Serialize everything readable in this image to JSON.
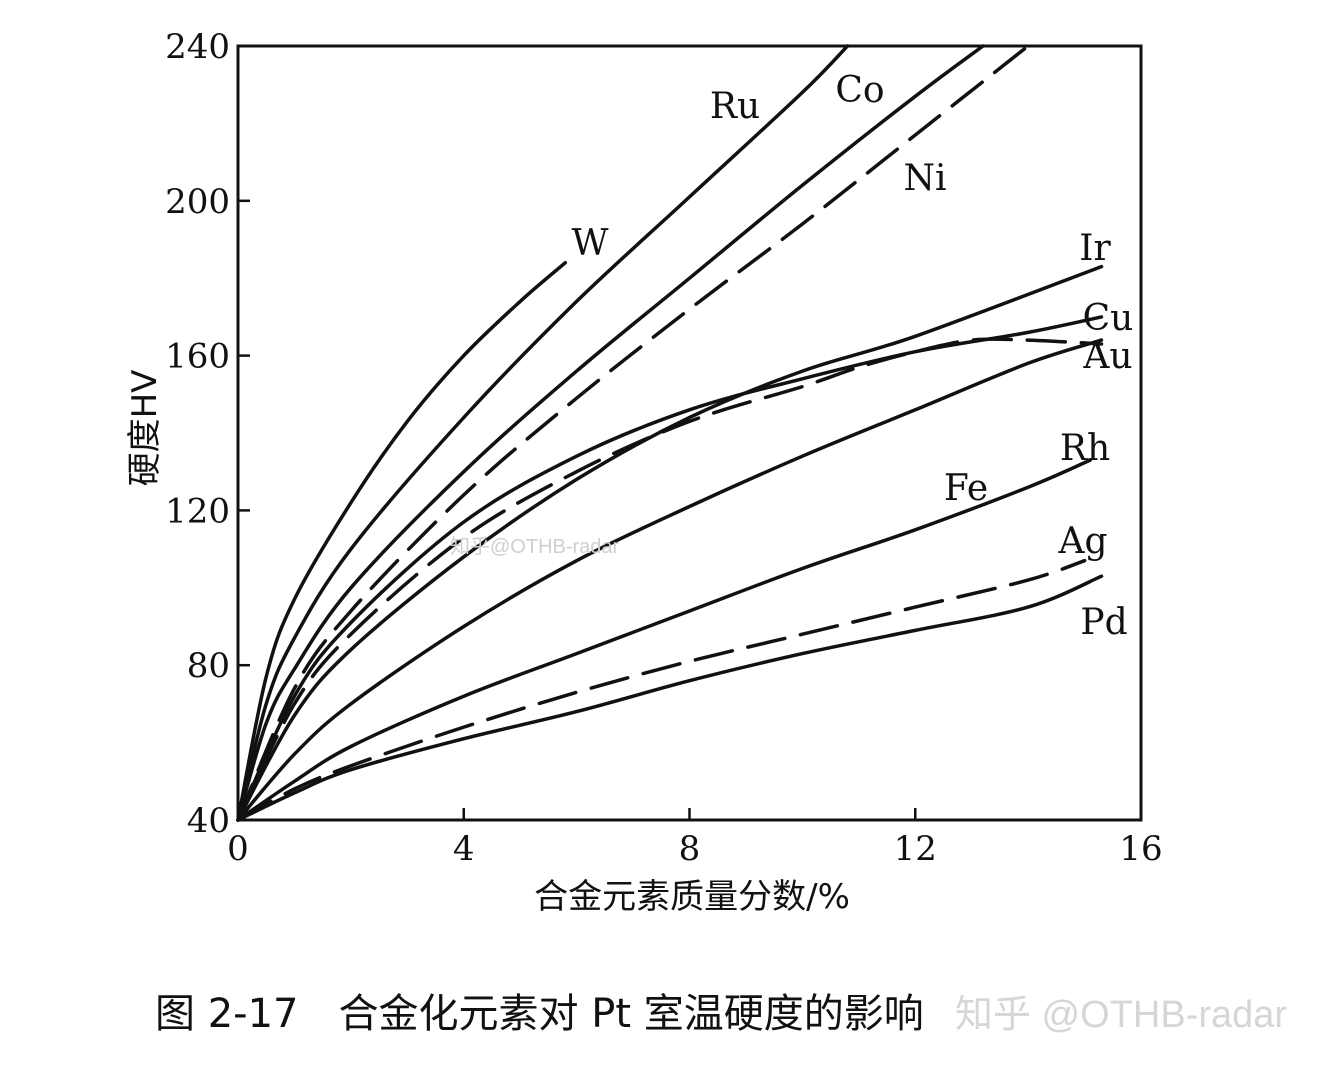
{
  "chart_data": {
    "type": "line",
    "xlabel": "合金元素质量分数/%",
    "ylabel": "硬度HV",
    "xlim": [
      0,
      16
    ],
    "ylim": [
      40,
      240
    ],
    "xticks": [
      0,
      4,
      8,
      12,
      16
    ],
    "yticks": [
      40,
      80,
      120,
      160,
      200,
      240
    ],
    "grid": false,
    "series": [
      {
        "name": "W",
        "style": "solid",
        "x": [
          0,
          0.5,
          1,
          2,
          3,
          4,
          5,
          5.8
        ],
        "y": [
          40,
          77,
          97,
          122,
          143,
          160,
          174,
          184
        ]
      },
      {
        "name": "Ru",
        "style": "solid",
        "x": [
          0,
          0.5,
          1,
          2,
          4,
          6,
          8,
          10,
          10.8
        ],
        "y": [
          40,
          70,
          87,
          110,
          144,
          174,
          201,
          228,
          240
        ]
      },
      {
        "name": "Co",
        "style": "solid",
        "x": [
          0,
          0.5,
          1,
          2,
          4,
          6,
          8,
          10,
          12,
          13.2
        ],
        "y": [
          40,
          65,
          79,
          100,
          130,
          156,
          180,
          204,
          227,
          240
        ]
      },
      {
        "name": "Ni",
        "style": "dashed",
        "x": [
          0,
          1,
          2,
          4,
          6,
          8,
          10,
          12,
          14
        ],
        "y": [
          40,
          74,
          94,
          124,
          149,
          172,
          194,
          217,
          240
        ]
      },
      {
        "name": "Ir",
        "style": "solid",
        "x": [
          0,
          1,
          2,
          4,
          6,
          8,
          10,
          12,
          15.3
        ],
        "y": [
          40,
          67,
          84,
          108,
          128,
          144,
          156,
          165,
          183
        ]
      },
      {
        "name": "Cu",
        "style": "solid",
        "x": [
          0,
          1,
          2,
          4,
          6,
          8,
          10,
          12,
          14,
          15.3
        ],
        "y": [
          40,
          72,
          91,
          117,
          134,
          146,
          154,
          161,
          166,
          170
        ]
      },
      {
        "name": "Au",
        "style": "dashed",
        "x": [
          0,
          1,
          2,
          4,
          6,
          8,
          10,
          11,
          12,
          13,
          14,
          15.3
        ],
        "y": [
          40,
          70,
          88,
          113,
          130,
          143,
          152,
          157,
          161,
          164,
          164,
          163
        ]
      },
      {
        "name": "Fe",
        "style": "solid",
        "x": [
          0,
          1,
          2,
          4,
          6,
          8,
          10,
          12,
          14,
          15.3
        ],
        "y": [
          40,
          57,
          70,
          90,
          107,
          121,
          134,
          146,
          158,
          164
        ]
      },
      {
        "name": "Rh",
        "style": "solid",
        "x": [
          0,
          1,
          2,
          4,
          6,
          8,
          10,
          12,
          14,
          15.1
        ],
        "y": [
          40,
          50,
          59,
          72,
          83,
          94,
          105,
          115,
          126,
          133
        ]
      },
      {
        "name": "Ag",
        "style": "dashed",
        "x": [
          0,
          1,
          2,
          4,
          6,
          8,
          10,
          12,
          14,
          15
        ],
        "y": [
          40,
          48,
          54,
          64,
          73,
          81,
          88,
          95,
          102,
          107
        ]
      },
      {
        "name": "Pd",
        "style": "solid",
        "x": [
          0,
          1,
          2,
          4,
          6,
          8,
          10,
          12,
          14,
          15.3
        ],
        "y": [
          40,
          47,
          53,
          61,
          68,
          76,
          83,
          89,
          95,
          103
        ]
      }
    ]
  },
  "caption": "图 2-17　合金化元素对 Pt 室温硬度的影响",
  "watermarks": [
    "知乎@OTHB-radar",
    "知乎 @OTHB-radar"
  ]
}
